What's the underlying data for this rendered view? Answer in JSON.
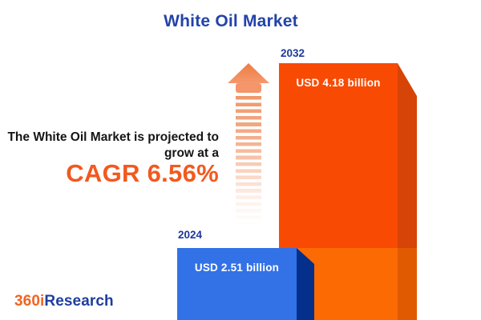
{
  "header": {
    "title": "White Oil Market",
    "title_color": "#2343a9"
  },
  "projection": {
    "line1": "The White Oil Market is projected to",
    "line2": "grow at a",
    "cagr": "CAGR 6.56%",
    "cagr_color": "#f2591e"
  },
  "chart_data": {
    "type": "bar",
    "title": "White Oil Market",
    "unit": "USD billion",
    "categories": [
      "2024",
      "2032"
    ],
    "values": [
      2.51,
      4.18
    ],
    "value_labels": [
      "USD 2.51 billion",
      "USD 4.18 billion"
    ],
    "cagr_percent": 6.56,
    "orientation": "vertical",
    "axes": "none",
    "grid": "off",
    "legend": "none",
    "bar_front_colors": [
      "#3372e6",
      "#f94a04"
    ],
    "bar_side_colors": [
      "#04308c",
      "#d64408"
    ],
    "bar_2032_overlap_segment_color": "#fc6a03",
    "year_label_color": "#1e3a99",
    "value_label_color": "#ffffff"
  },
  "icons": {
    "growth_arrow": "striped-up-arrow",
    "growth_arrow_color": "#f0884f"
  },
  "branding": {
    "logo_prefix": "360i",
    "logo_suffix": "Research",
    "logo_prefix_color": "#f26321",
    "logo_suffix_color": "#1d3e9e"
  }
}
